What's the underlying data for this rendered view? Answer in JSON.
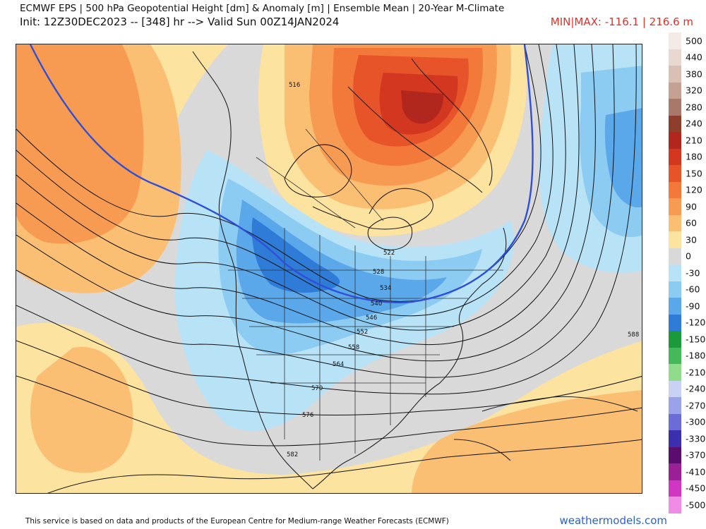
{
  "header": {
    "title": "ECMWF EPS | 500 hPa Geopotential Height [dm] & Anomaly [m] | Ensemble Mean | 20-Year M-Climate",
    "init_line": "Init: 12Z30DEC2023 -- [348] hr --> Valid Sun 00Z14JAN2024",
    "minmax": "MIN|MAX: -116.1 | 216.6 m"
  },
  "colorbar": [
    {
      "label": "500",
      "color": "#f2ebe8"
    },
    {
      "label": "440",
      "color": "#e8d8d2"
    },
    {
      "label": "380",
      "color": "#d9bfb4"
    },
    {
      "label": "320",
      "color": "#c4a193"
    },
    {
      "label": "280",
      "color": "#a8796a"
    },
    {
      "label": "240",
      "color": "#8e3f2c"
    },
    {
      "label": "210",
      "color": "#b2271d"
    },
    {
      "label": "180",
      "color": "#d4371f"
    },
    {
      "label": "150",
      "color": "#e8542a"
    },
    {
      "label": "120",
      "color": "#f2793a"
    },
    {
      "label": "90",
      "color": "#f79a52"
    },
    {
      "label": "60",
      "color": "#fbbf74"
    },
    {
      "label": "30",
      "color": "#fde3a0"
    },
    {
      "label": "0",
      "color": "#d9d9d9"
    },
    {
      "label": "-30",
      "color": "#b8e3f6"
    },
    {
      "label": "-60",
      "color": "#8ccbf2"
    },
    {
      "label": "-90",
      "color": "#5aa7ea"
    },
    {
      "label": "-120",
      "color": "#2f7bd8"
    },
    {
      "label": "-150",
      "color": "#1a9a3a"
    },
    {
      "label": "-180",
      "color": "#45b85a"
    },
    {
      "label": "-210",
      "color": "#8fdc8c"
    },
    {
      "label": "-240",
      "color": "#c9d2f5"
    },
    {
      "label": "-270",
      "color": "#9aa3ea"
    },
    {
      "label": "-300",
      "color": "#6b6cd8"
    },
    {
      "label": "-330",
      "color": "#3b2fb0"
    },
    {
      "label": "-370",
      "color": "#5b0d6e"
    },
    {
      "label": "-410",
      "color": "#9b1f95"
    },
    {
      "label": "-450",
      "color": "#d036c2"
    },
    {
      "label": "-500",
      "color": "#f08ce6"
    }
  ],
  "contour_labels": [
    "516",
    "522",
    "528",
    "534",
    "540",
    "546",
    "552",
    "558",
    "564",
    "570",
    "576",
    "582",
    "588"
  ],
  "footer": {
    "credit": "This service is based on data and products of the European Centre for Medium-range Weather Forecasts (ECMWF)",
    "brand": "weathermodels.com"
  }
}
